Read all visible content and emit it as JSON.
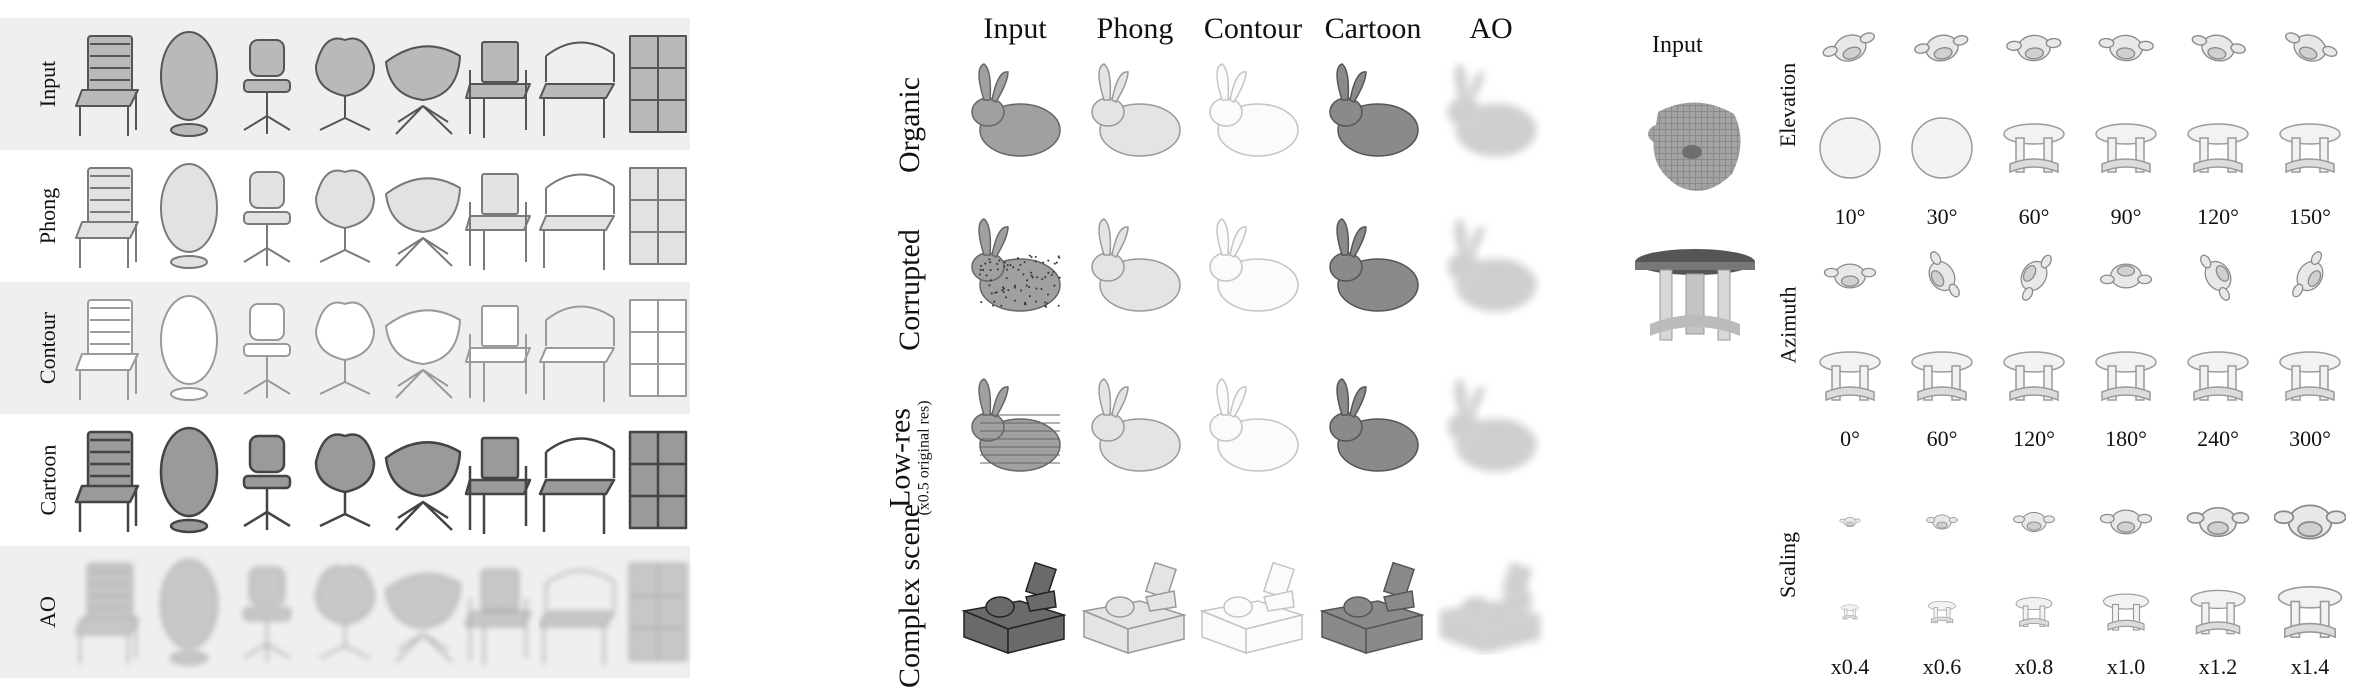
{
  "left_panel": {
    "rows": [
      {
        "label": "Input"
      },
      {
        "label": "Phong"
      },
      {
        "label": "Contour"
      },
      {
        "label": "Cartoon"
      },
      {
        "label": "AO"
      }
    ]
  },
  "middle_panel": {
    "columns": [
      "Input",
      "Phong",
      "Contour",
      "Cartoon",
      "AO"
    ],
    "rows": [
      {
        "label": "Organic",
        "sublabel": ""
      },
      {
        "label": "Corrupted",
        "sublabel": ""
      },
      {
        "label": "Low-res",
        "sublabel": "(x0.5 original res)"
      },
      {
        "label": "Complex scene",
        "sublabel": ""
      }
    ]
  },
  "right_panel": {
    "input_label": "Input",
    "groups": [
      {
        "label": "Elevation",
        "ticks": [
          "10°",
          "30°",
          "60°",
          "90°",
          "120°",
          "150°"
        ]
      },
      {
        "label": "Azimuth",
        "ticks": [
          "0°",
          "60°",
          "120°",
          "180°",
          "240°",
          "300°"
        ]
      },
      {
        "label": "Scaling",
        "ticks": [
          "x0.4",
          "x0.6",
          "x0.8",
          "x1.0",
          "x1.2",
          "x1.4"
        ]
      }
    ]
  }
}
